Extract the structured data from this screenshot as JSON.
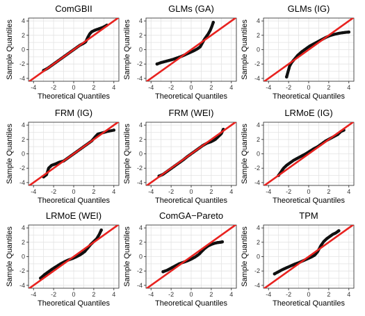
{
  "chart_data": [
    {
      "type": "scatter",
      "title": "ComGBII",
      "xlabel": "Theoretical Quantiles",
      "ylabel": "Sample Quantiles",
      "xlim": [
        -4.5,
        4.5
      ],
      "ylim": [
        -4.4,
        4.4
      ],
      "xticks": [
        -4,
        -2,
        0,
        2,
        4
      ],
      "yticks": [
        -4,
        -2,
        0,
        2,
        4
      ],
      "reference_line": {
        "slope": 1,
        "intercept": 0,
        "color": "#e8221f"
      },
      "x": [
        -3.0,
        -2.6,
        -2.2,
        -1.8,
        -1.4,
        -1.0,
        -0.6,
        -0.2,
        0.2,
        0.6,
        1.0,
        1.2,
        1.4,
        1.6,
        1.8,
        2.1,
        2.5,
        2.9,
        3.3
      ],
      "y": [
        -2.9,
        -2.6,
        -2.2,
        -1.8,
        -1.4,
        -1.0,
        -0.6,
        -0.2,
        0.2,
        0.6,
        0.9,
        1.1,
        1.7,
        2.2,
        2.5,
        2.7,
        2.9,
        3.1,
        3.4
      ]
    },
    {
      "type": "scatter",
      "title": "GLMs (GA)",
      "xlabel": "Theoretical Quantiles",
      "ylabel": "Sample Quantiles",
      "xlim": [
        -4.5,
        4.5
      ],
      "ylim": [
        -4.4,
        4.4
      ],
      "xticks": [
        -4,
        -2,
        0,
        2,
        4
      ],
      "yticks": [
        -4,
        -2,
        0,
        2,
        4
      ],
      "reference_line": {
        "slope": 1,
        "intercept": 0,
        "color": "#e8221f"
      },
      "x": [
        -3.4,
        -3.0,
        -2.6,
        -2.2,
        -1.8,
        -1.4,
        -1.0,
        -0.6,
        -0.2,
        0.2,
        0.6,
        0.9,
        1.1,
        1.3,
        1.5,
        1.7,
        1.9,
        2.05,
        2.2
      ],
      "y": [
        -2.0,
        -1.8,
        -1.65,
        -1.5,
        -1.35,
        -1.15,
        -0.95,
        -0.7,
        -0.45,
        -0.2,
        0.1,
        0.4,
        0.9,
        1.4,
        1.8,
        2.2,
        2.7,
        3.2,
        3.8
      ]
    },
    {
      "type": "scatter",
      "title": "GLMs (IG)",
      "xlabel": "Theoretical Quantiles",
      "ylabel": "Sample Quantiles",
      "xlim": [
        -4.5,
        4.5
      ],
      "ylim": [
        -4.4,
        4.4
      ],
      "xticks": [
        -4,
        -2,
        0,
        2,
        4
      ],
      "yticks": [
        -4,
        -2,
        0,
        2,
        4
      ],
      "reference_line": {
        "slope": 1,
        "intercept": 0,
        "color": "#e8221f"
      },
      "x": [
        -2.2,
        -2.1,
        -2.0,
        -1.9,
        -1.7,
        -1.4,
        -1.1,
        -0.7,
        -0.3,
        0.1,
        0.5,
        0.9,
        1.3,
        1.7,
        2.1,
        2.6,
        3.1,
        3.6,
        4.0
      ],
      "y": [
        -3.8,
        -3.3,
        -2.8,
        -2.3,
        -1.8,
        -1.3,
        -0.8,
        -0.3,
        0.1,
        0.5,
        0.8,
        1.1,
        1.4,
        1.7,
        1.95,
        2.15,
        2.3,
        2.4,
        2.45
      ]
    },
    {
      "type": "scatter",
      "title": "FRM (IG)",
      "xlabel": "Theoretical Quantiles",
      "ylabel": "Sample Quantiles",
      "xlim": [
        -4.5,
        4.5
      ],
      "ylim": [
        -4.4,
        4.4
      ],
      "xticks": [
        -4,
        -2,
        0,
        2,
        4
      ],
      "yticks": [
        -4,
        -2,
        0,
        2,
        4
      ],
      "reference_line": {
        "slope": 1,
        "intercept": 0,
        "color": "#e8221f"
      },
      "x": [
        -3.0,
        -2.7,
        -2.5,
        -2.2,
        -1.8,
        -1.4,
        -1.0,
        -0.6,
        -0.2,
        0.2,
        0.6,
        1.0,
        1.4,
        1.8,
        2.1,
        2.4,
        2.8,
        3.3,
        4.0
      ],
      "y": [
        -3.2,
        -2.9,
        -2.0,
        -1.6,
        -1.4,
        -1.15,
        -1.0,
        -0.6,
        -0.2,
        0.2,
        0.6,
        1.0,
        1.4,
        1.8,
        2.3,
        2.75,
        2.9,
        3.1,
        3.3
      ]
    },
    {
      "type": "scatter",
      "title": "FRM (WEI)",
      "xlabel": "Theoretical Quantiles",
      "ylabel": "Sample Quantiles",
      "xlim": [
        -4.5,
        4.5
      ],
      "ylim": [
        -4.4,
        4.4
      ],
      "xticks": [
        -4,
        -2,
        0,
        2,
        4
      ],
      "yticks": [
        -4,
        -2,
        0,
        2,
        4
      ],
      "reference_line": {
        "slope": 1,
        "intercept": 0,
        "color": "#e8221f"
      },
      "x": [
        -3.2,
        -2.8,
        -2.4,
        -2.0,
        -1.6,
        -1.2,
        -0.8,
        -0.4,
        0.0,
        0.4,
        0.8,
        1.2,
        1.6,
        2.0,
        2.4,
        2.7,
        3.0,
        3.2
      ],
      "y": [
        -3.1,
        -2.85,
        -2.45,
        -2.05,
        -1.65,
        -1.25,
        -0.85,
        -0.4,
        0.0,
        0.4,
        0.8,
        1.2,
        1.5,
        1.7,
        2.0,
        2.4,
        2.8,
        3.4
      ]
    },
    {
      "type": "scatter",
      "title": "LRMoE (IG)",
      "xlabel": "Theoretical Quantiles",
      "ylabel": "Sample Quantiles",
      "xlim": [
        -4.5,
        4.5
      ],
      "ylim": [
        -4.4,
        4.4
      ],
      "xticks": [
        -4,
        -2,
        0,
        2,
        4
      ],
      "yticks": [
        -4,
        -2,
        0,
        2,
        4
      ],
      "reference_line": {
        "slope": 1,
        "intercept": 0,
        "color": "#e8221f"
      },
      "x": [
        -3.0,
        -2.7,
        -2.5,
        -2.2,
        -1.9,
        -1.5,
        -1.1,
        -0.7,
        -0.3,
        0.1,
        0.5,
        0.9,
        1.3,
        1.7,
        2.1,
        2.5,
        2.9,
        3.2,
        3.5
      ],
      "y": [
        -3.0,
        -2.4,
        -2.0,
        -1.6,
        -1.3,
        -0.9,
        -0.6,
        -0.3,
        0.0,
        0.35,
        0.7,
        1.0,
        1.4,
        1.8,
        2.1,
        2.4,
        2.7,
        3.1,
        3.3
      ]
    },
    {
      "type": "scatter",
      "title": "LRMoE (WEI)",
      "xlabel": "Theoretical Quantiles",
      "ylabel": "Sample Quantiles",
      "xlim": [
        -4.5,
        4.5
      ],
      "ylim": [
        -4.4,
        4.4
      ],
      "xticks": [
        -4,
        -2,
        0,
        2,
        4
      ],
      "yticks": [
        -4,
        -2,
        0,
        2,
        4
      ],
      "reference_line": {
        "slope": 1,
        "intercept": 0,
        "color": "#e8221f"
      },
      "x": [
        -3.3,
        -2.9,
        -2.5,
        -2.1,
        -1.7,
        -1.3,
        -0.9,
        -0.5,
        -0.1,
        0.3,
        0.7,
        1.1,
        1.4,
        1.7,
        2.0,
        2.3,
        2.55,
        2.75
      ],
      "y": [
        -3.0,
        -2.5,
        -2.1,
        -1.7,
        -1.35,
        -1.0,
        -0.7,
        -0.45,
        -0.25,
        0.0,
        0.3,
        0.7,
        1.2,
        1.7,
        2.1,
        2.5,
        3.1,
        3.7
      ]
    },
    {
      "type": "scatter",
      "title": "ComGA−Pareto",
      "xlabel": "Theoretical Quantiles",
      "ylabel": "Sample Quantiles",
      "xlim": [
        -4.5,
        4.5
      ],
      "ylim": [
        -4.4,
        4.4
      ],
      "xticks": [
        -4,
        -2,
        0,
        2,
        4
      ],
      "yticks": [
        -4,
        -2,
        0,
        2,
        4
      ],
      "reference_line": {
        "slope": 1,
        "intercept": 0,
        "color": "#e8221f"
      },
      "x": [
        -2.8,
        -2.4,
        -2.0,
        -1.6,
        -1.2,
        -0.8,
        -0.4,
        0.0,
        0.4,
        0.8,
        1.1,
        1.4,
        1.7,
        2.0,
        2.3,
        2.6,
        2.9,
        3.1
      ],
      "y": [
        -2.1,
        -1.9,
        -1.6,
        -1.3,
        -1.0,
        -0.8,
        -0.6,
        -0.35,
        -0.05,
        0.35,
        0.8,
        1.2,
        1.5,
        1.7,
        1.85,
        1.95,
        2.0,
        2.05
      ]
    },
    {
      "type": "scatter",
      "title": "TPM",
      "xlabel": "Theoretical Quantiles",
      "ylabel": "Sample Quantiles",
      "xlim": [
        -4.5,
        4.5
      ],
      "ylim": [
        -4.4,
        4.4
      ],
      "xticks": [
        -4,
        -2,
        0,
        2,
        4
      ],
      "yticks": [
        -4,
        -2,
        0,
        2,
        4
      ],
      "reference_line": {
        "slope": 1,
        "intercept": 0,
        "color": "#e8221f"
      },
      "x": [
        -3.4,
        -3.0,
        -2.6,
        -2.2,
        -1.8,
        -1.4,
        -1.0,
        -0.6,
        -0.2,
        0.2,
        0.6,
        0.9,
        1.2,
        1.5,
        1.8,
        2.1,
        2.4,
        2.7,
        3.0
      ],
      "y": [
        -2.4,
        -2.1,
        -1.8,
        -1.55,
        -1.3,
        -1.05,
        -0.85,
        -0.6,
        -0.35,
        -0.1,
        0.2,
        0.7,
        1.5,
        2.1,
        2.5,
        2.8,
        3.1,
        3.3,
        3.6
      ]
    }
  ]
}
